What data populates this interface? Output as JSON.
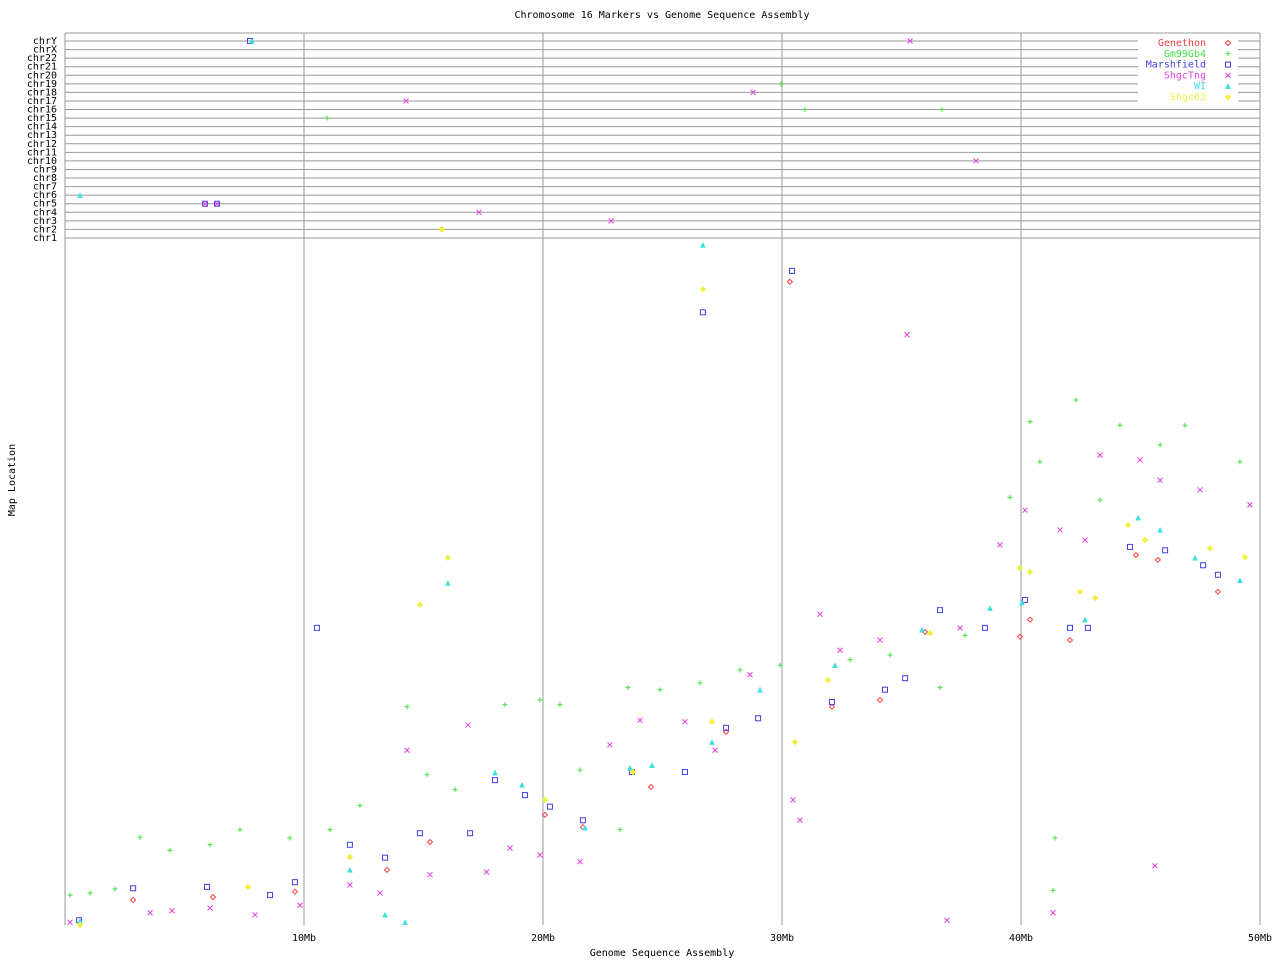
{
  "chart_data": {
    "type": "scatter",
    "title": "Chromosome 16 Markers vs Genome Sequence Assembly",
    "x_label": "Genome Sequence Assembly",
    "y_label": "Map Location",
    "xlim": [
      0,
      50
    ],
    "xticks": [
      {
        "value": 10,
        "label": "10Mb"
      },
      {
        "value": 20,
        "label": "20Mb"
      },
      {
        "value": 30,
        "label": "30Mb"
      },
      {
        "value": 40,
        "label": "40Mb"
      },
      {
        "value": 50,
        "label": "50Mb"
      }
    ],
    "ylim": [
      0,
      100
    ],
    "grid": true,
    "legend": "top-right",
    "categories": [
      "chr1",
      "chr2",
      "chr3",
      "chr4",
      "chr5",
      "chr6",
      "chr7",
      "chr8",
      "chr9",
      "chr10",
      "chr11",
      "chr12",
      "chr13",
      "chr14",
      "chr15",
      "chr16",
      "chr17",
      "chr18",
      "chr19",
      "chr20",
      "chr21",
      "chr22",
      "chrX",
      "chrY"
    ],
    "series": [
      {
        "name": "Genethon",
        "color": "#f04040",
        "marker": "diamond",
        "x": [
          2.85,
          6.19,
          9.62,
          13.47,
          15.27,
          20.08,
          21.67,
          24.52,
          27.66,
          30.33,
          32.09,
          34.1,
          35.98,
          39.96,
          40.38,
          42.05,
          44.81,
          45.73,
          48.24
        ],
        "y": [
          3.7,
          4.1,
          4.9,
          8.1,
          12.2,
          16.2,
          14.4,
          20.3,
          28.4,
          94.6,
          32.1,
          33.1,
          43.1,
          42.4,
          44.9,
          41.9,
          54.4,
          53.7,
          49.0
        ],
        "chromosome_hits": {
          "x": [
            15.77
          ],
          "chromosomes": [
            "chr2"
          ]
        }
      },
      {
        "name": "Gm99Gb4",
        "color": "#40e040",
        "marker": "plus",
        "x": [
          0.21,
          1.05,
          2.09,
          3.14,
          4.39,
          6.07,
          7.32,
          9.41,
          11.09,
          12.34,
          14.31,
          15.15,
          16.32,
          18.41,
          19.87,
          20.71,
          21.55,
          23.22,
          23.56,
          24.9,
          26.57,
          28.24,
          29.92,
          32.85,
          34.52,
          36.61,
          37.66,
          39.54,
          40.38,
          40.79,
          42.3,
          43.31,
          44.14,
          45.82,
          46.86,
          49.16,
          41.42,
          41.34
        ],
        "y": [
          4.4,
          4.7,
          5.3,
          12.9,
          11.0,
          11.8,
          14.0,
          12.8,
          14.0,
          17.6,
          32.1,
          22.1,
          19.9,
          32.4,
          33.1,
          32.4,
          22.8,
          14.0,
          34.9,
          34.6,
          35.6,
          37.5,
          38.2,
          39.0,
          39.7,
          34.9,
          42.6,
          62.9,
          74.0,
          68.1,
          77.2,
          62.5,
          73.5,
          70.6,
          73.5,
          68.1,
          12.8,
          5.1
        ],
        "chromosome_hits": {
          "x": [
            10.96,
            29.96,
            30.96,
            36.69
          ],
          "chromosomes": [
            "chr15",
            "chr19",
            "chr16",
            "chr16"
          ]
        }
      },
      {
        "name": "Marshfield",
        "color": "#4040e0",
        "marker": "square",
        "x": [
          0.59,
          2.85,
          5.94,
          8.58,
          9.62,
          10.54,
          11.92,
          13.39,
          14.85,
          16.95,
          17.99,
          19.25,
          20.29,
          21.67,
          23.72,
          25.94,
          26.69,
          27.66,
          29.0,
          30.42,
          32.09,
          34.31,
          35.15,
          36.61,
          38.49,
          40.17,
          42.05,
          42.8,
          44.56,
          46.03,
          47.62,
          48.24
        ],
        "y": [
          0.7,
          5.4,
          5.6,
          4.4,
          6.3,
          43.7,
          11.8,
          9.9,
          13.5,
          13.5,
          21.3,
          19.1,
          17.4,
          15.4,
          22.5,
          22.5,
          90.1,
          29.0,
          30.4,
          96.2,
          32.8,
          34.6,
          36.3,
          46.3,
          43.7,
          47.8,
          43.7,
          43.7,
          55.6,
          55.1,
          52.9,
          51.5
        ],
        "chromosome_hits": {
          "x": [
            7.74,
            5.86,
            6.36
          ],
          "chromosomes": [
            "chrY",
            "chr5",
            "chr5"
          ]
        }
      },
      {
        "name": "ShgcTng",
        "color": "#e040e0",
        "marker": "cross",
        "x": [
          0.21,
          3.56,
          4.48,
          6.07,
          7.95,
          9.83,
          11.92,
          13.18,
          14.31,
          15.27,
          16.86,
          17.64,
          18.62,
          19.87,
          21.55,
          22.8,
          24.06,
          25.94,
          27.2,
          28.66,
          30.46,
          30.75,
          31.59,
          32.43,
          34.1,
          35.23,
          36.9,
          37.45,
          39.12,
          40.17,
          41.63,
          42.68,
          43.31,
          44.98,
          45.82,
          47.49,
          49.58,
          41.34,
          45.6
        ],
        "y": [
          0.4,
          1.8,
          2.1,
          2.5,
          1.5,
          2.9,
          5.9,
          4.7,
          25.7,
          7.4,
          29.4,
          7.8,
          11.3,
          10.3,
          9.3,
          26.5,
          30.1,
          29.9,
          25.7,
          36.8,
          18.4,
          15.4,
          45.7,
          40.4,
          41.9,
          86.8,
          0.7,
          43.7,
          55.9,
          61.0,
          58.1,
          56.6,
          69.1,
          68.4,
          65.4,
          64.0,
          61.8,
          1.8,
          8.7
        ],
        "chromosome_hits": {
          "x": [
            35.36,
            28.79,
            14.27,
            38.12,
            5.86,
            6.36,
            17.32,
            22.85
          ],
          "chromosomes": [
            "chrY",
            "chr18",
            "chr17",
            "chr10",
            "chr5",
            "chr5",
            "chr4",
            "chr3"
          ]
        }
      },
      {
        "name": "WI",
        "color": "#40e0e0",
        "marker": "triangle",
        "x": [
          0.63,
          11.92,
          13.39,
          14.23,
          16.02,
          17.99,
          19.12,
          21.76,
          23.64,
          24.56,
          26.69,
          27.07,
          29.08,
          32.22,
          35.86,
          38.7,
          40.04,
          42.68,
          44.9,
          45.82,
          47.28,
          49.16
        ],
        "y": [
          0.6,
          8.1,
          1.5,
          0.4,
          50.3,
          22.4,
          20.6,
          14.3,
          23.1,
          23.5,
          100.0,
          26.9,
          34.6,
          38.2,
          43.4,
          46.6,
          47.4,
          44.9,
          59.9,
          58.1,
          54.0,
          50.7
        ],
        "chromosome_hits": {
          "x": [
            0.63,
            7.82
          ],
          "chromosomes": [
            "chr6",
            "chrY"
          ]
        }
      },
      {
        "name": "Shgc63",
        "color": "#f0f040",
        "marker": "filled-diamond",
        "x": [
          0.63,
          7.66,
          11.92,
          14.85,
          16.02,
          20.08,
          23.77,
          26.69,
          27.07,
          30.54,
          31.92,
          36.19,
          39.96,
          40.38,
          42.47,
          43.1,
          44.48,
          45.19,
          47.91,
          49.37
        ],
        "y": [
          0.0,
          5.6,
          10.0,
          47.1,
          54.0,
          18.4,
          22.5,
          93.5,
          29.9,
          26.9,
          36.0,
          42.9,
          52.5,
          51.9,
          49.0,
          48.1,
          58.8,
          56.6,
          55.4,
          54.1
        ],
        "chromosome_hits": {
          "x": [
            15.77
          ],
          "chromosomes": [
            "chr2"
          ]
        }
      }
    ]
  }
}
